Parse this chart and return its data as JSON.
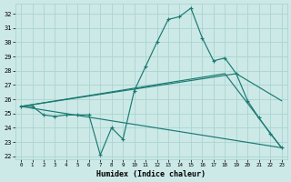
{
  "bg_color": "#cce9e7",
  "grid_color": "#aad4d0",
  "line_color": "#1a7a72",
  "ylim": [
    21.8,
    32.7
  ],
  "xlim": [
    -0.5,
    23.5
  ],
  "yticks": [
    22,
    23,
    24,
    25,
    26,
    27,
    28,
    29,
    30,
    31,
    32
  ],
  "xticks": [
    0,
    1,
    2,
    3,
    4,
    5,
    6,
    7,
    8,
    9,
    10,
    11,
    12,
    13,
    14,
    15,
    16,
    17,
    18,
    19,
    20,
    21,
    22,
    23
  ],
  "xlabel": "Humidex (Indice chaleur)",
  "series_main": {
    "x": [
      0,
      1,
      2,
      3,
      4,
      5,
      6,
      7,
      8,
      9,
      10,
      11,
      12,
      13,
      14,
      15,
      16,
      17,
      18,
      19,
      20,
      21,
      22,
      23
    ],
    "y": [
      25.5,
      25.5,
      24.9,
      24.8,
      24.9,
      24.9,
      24.9,
      22.1,
      24.0,
      23.2,
      26.6,
      28.3,
      30.0,
      31.6,
      31.8,
      32.4,
      30.3,
      28.7,
      28.9,
      27.8,
      25.9,
      24.7,
      23.6,
      22.6
    ]
  },
  "line_straight": {
    "x": [
      0,
      23
    ],
    "y": [
      25.5,
      22.6
    ]
  },
  "line_peak19": {
    "x": [
      0,
      19,
      23
    ],
    "y": [
      25.5,
      27.8,
      25.9
    ]
  },
  "line_peak18": {
    "x": [
      0,
      18,
      23
    ],
    "y": [
      25.5,
      27.8,
      22.6
    ]
  }
}
